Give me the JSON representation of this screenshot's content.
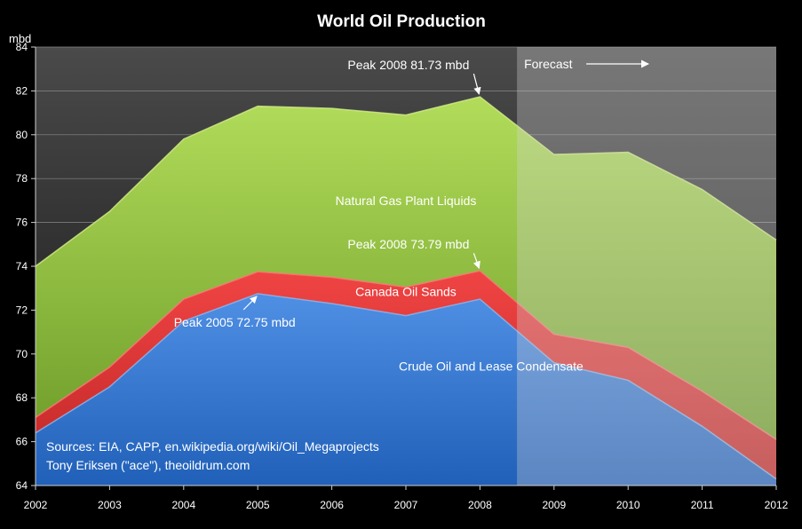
{
  "chart_data": {
    "type": "area",
    "title": "World Oil Production",
    "ylabel": "mbd",
    "xlabel": "",
    "x": [
      2002,
      2003,
      2004,
      2005,
      2006,
      2007,
      2008,
      2009,
      2010,
      2011,
      2012
    ],
    "ylim": [
      64,
      84
    ],
    "yticks": [
      64,
      66,
      68,
      70,
      72,
      74,
      76,
      78,
      80,
      82,
      84
    ],
    "stacked": true,
    "grid": true,
    "series": [
      {
        "name": "Crude Oil and Lease Condensate",
        "color": "#3a78d2",
        "cumulative": [
          66.4,
          68.5,
          71.5,
          72.75,
          72.3,
          71.75,
          72.5,
          69.6,
          68.8,
          66.7,
          64.3
        ]
      },
      {
        "name": "Canada Oil Sands",
        "color": "#d9363a",
        "cumulative": [
          67.1,
          69.4,
          72.5,
          73.75,
          73.5,
          73.05,
          73.79,
          70.9,
          70.3,
          68.3,
          66.1
        ]
      },
      {
        "name": "Natural Gas Plant Liquids",
        "color": "#8fc03c",
        "cumulative": [
          74.0,
          76.5,
          79.8,
          81.3,
          81.2,
          80.9,
          81.73,
          79.1,
          79.2,
          77.5,
          75.2
        ]
      }
    ],
    "forecast": {
      "label": "Forecast",
      "from_x": 2008.5,
      "to_x": 2012
    },
    "annotations": [
      {
        "text": "Peak 2008 81.73 mbd",
        "x": 2008,
        "y": 81.73
      },
      {
        "text": "Peak 2008 73.79 mbd",
        "x": 2008,
        "y": 73.79
      },
      {
        "text": "Peak 2005 72.75 mbd",
        "x": 2005,
        "y": 72.75
      }
    ],
    "sources": [
      "Sources: EIA, CAPP, en.wikipedia.org/wiki/Oil_Megaprojects",
      "Tony Eriksen (\"ace\"), theoildrum.com"
    ]
  }
}
